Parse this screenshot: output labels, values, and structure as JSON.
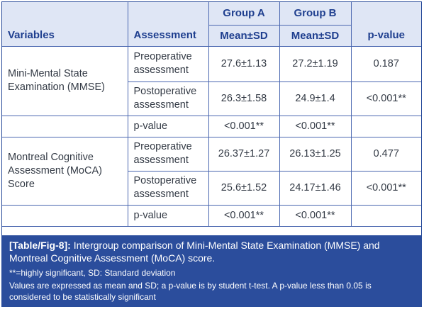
{
  "headers": {
    "variables": "Variables",
    "assessment": "Assessment",
    "group_a": "Group A",
    "group_b": "Group B",
    "mean_sd_a": "Mean±SD",
    "mean_sd_b": "Mean±SD",
    "p_value": "p-value"
  },
  "rows": [
    {
      "variable": "Mini-Mental State Examination (MMSE)",
      "assessment": "Preoperative assessment",
      "group_a": "27.6±1.13",
      "group_b": "27.2±1.19",
      "p_value": "0.187"
    },
    {
      "assessment": "Postoperative assessment",
      "group_a": "26.3±1.58",
      "group_b": "24.9±1.4",
      "p_value": "<0.001**"
    },
    {
      "assessment": "p-value",
      "group_a": "<0.001**",
      "group_b": "<0.001**",
      "p_value": ""
    },
    {
      "variable": "Montreal Cognitive Assessment (MoCA) Score",
      "assessment": "Preoperative assessment",
      "group_a": "26.37±1.27",
      "group_b": "26.13±1.25",
      "p_value": "0.477"
    },
    {
      "assessment": "Postoperative assessment",
      "group_a": "25.6±1.52",
      "group_b": "24.17±1.46",
      "p_value": "<0.001**"
    },
    {
      "assessment": "p-value",
      "group_a": "<0.001**",
      "group_b": "<0.001**",
      "p_value": ""
    }
  ],
  "caption": {
    "tag": "[Table/Fig-8]:",
    "title": "Intergroup comparison of Mini-Mental State Examination (MMSE) and Montreal Cognitive Assessment (MoCA) score.",
    "note1": "**=highly significant, SD: Standard deviation",
    "note2": "Values are expressed as mean and SD; a p-value is by student t-test. A p-value less than 0.05 is considered to be statistically significant"
  },
  "colors": {
    "accent": "#2b4d9c",
    "header_bg": "#dfe6f5",
    "text": "#333a45"
  }
}
